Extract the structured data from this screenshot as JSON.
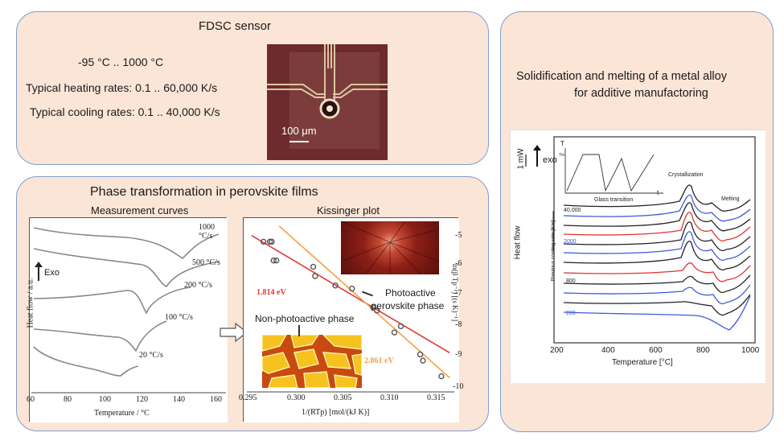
{
  "fdsc": {
    "title": "FDSC sensor",
    "temp_range": "-95 °C .. 1000 °C",
    "heating": "Typical heating rates: 0.1 .. 60,000 K/s",
    "cooling": "Typical cooling rates: 0.1 .. 40,000 K/s",
    "scale_bar": "100 μm"
  },
  "perovskite": {
    "title": "Phase transformation in perovskite films",
    "measurement_title": "Measurement  curves",
    "kissinger_title": "Kissinger plot",
    "photoactive": "Photoactive\nperovskite phase",
    "nonphotoactive": "Non-photoactive phase",
    "meas": {
      "ylabel": "Heat flow / a.u.",
      "xlabel": "Temperature / °C",
      "exo": "Exo",
      "xticks": [
        "60",
        "80",
        "100",
        "120",
        "140",
        "160"
      ],
      "curve_labels": [
        "1000 °C/s",
        "500 °C/s",
        "200 °C/s",
        "100 °C/s",
        "20 °C/s"
      ]
    },
    "kiss": {
      "xlabel": "1/(RTp) [mol/(kJ K)]",
      "ylabel": "ln(β Tp⁻²) [(s K)⁻¹]",
      "xticks": [
        "0.295",
        "0.300",
        "0.305",
        "0.310",
        "0.315"
      ],
      "yticks": [
        "-5",
        "-6",
        "-7",
        "-8",
        "-9",
        "-10"
      ],
      "red_label": "1.814 eV",
      "orange_label": "2.861 eV",
      "red_color": "#e53935",
      "orange_color": "#f5a142"
    }
  },
  "alloy": {
    "title_line1": "Solidification and melting of a metal alloy",
    "title_line2": "for additive manufactoring",
    "scale": "1 mW",
    "exo": "exo",
    "crystallization": "Crystallization",
    "melting": "Melting",
    "glass": "Glass transition",
    "heatflow": "Heat flow",
    "prev_rate": "Previous cooling rate [K/s]",
    "rates": [
      "40,000",
      "2000",
      "800",
      "200"
    ],
    "xlabel": "Temperature [°C]",
    "xticks": [
      "200",
      "400",
      "600",
      "800",
      "1000"
    ],
    "inset_T": "T",
    "inset_t": "t",
    "inset_Tm": "Tm"
  },
  "chart_data": [
    {
      "type": "scatter",
      "title": "Kissinger plot",
      "xlabel": "1/(RTp) [mol/(kJ K)]",
      "ylabel": "ln(β Tp⁻²) [(s K)⁻¹]",
      "xlim": [
        0.295,
        0.3175
      ],
      "ylim": [
        -10,
        -4.6
      ],
      "series": [
        {
          "name": "points",
          "x": [
            0.2968,
            0.2975,
            0.2977,
            0.2979,
            0.2982,
            0.3022,
            0.3024,
            0.3046,
            0.3064,
            0.3087,
            0.3091,
            0.311,
            0.3117,
            0.3138,
            0.3141,
            0.3161
          ],
          "y": [
            -5.2,
            -5.2,
            -5.2,
            -5.8,
            -5.8,
            -6.0,
            -6.3,
            -6.6,
            -6.7,
            -7.3,
            -7.4,
            -8.1,
            -7.9,
            -8.8,
            -9.0,
            -9.5
          ]
        },
        {
          "name": "1.814 eV",
          "x": [
            0.2955,
            0.317
          ],
          "y": [
            -5.0,
            -8.75
          ]
        },
        {
          "name": "2.861 eV",
          "x": [
            0.2985,
            0.317
          ],
          "y": [
            -4.7,
            -9.55
          ]
        }
      ]
    }
  ]
}
